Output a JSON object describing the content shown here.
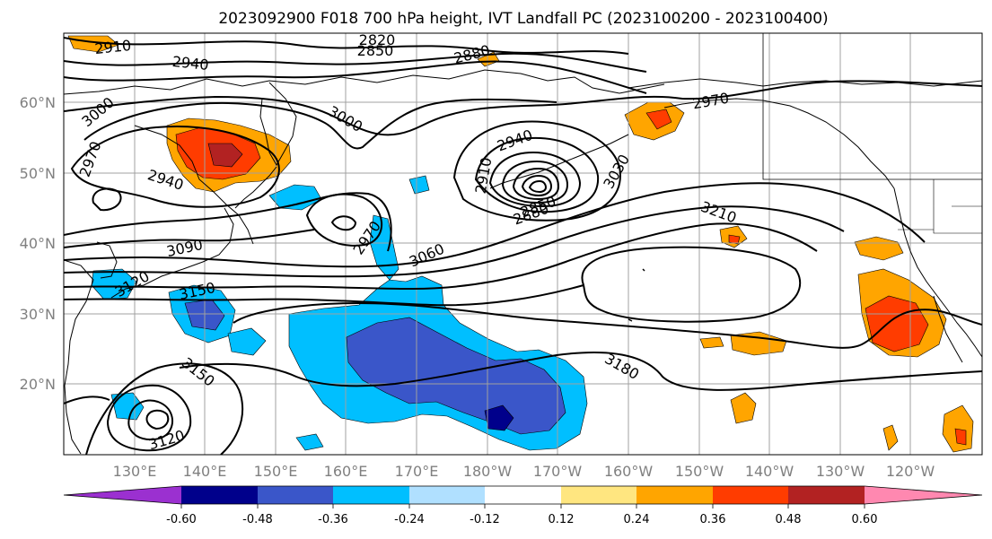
{
  "title": "2023092900 F018 700 hPa height, IVT Landfall PC (2023100200 - 2023100400)",
  "lat_labels": [
    "60°N",
    "50°N",
    "40°N",
    "30°N",
    "20°N"
  ],
  "lon_labels": [
    "130°E",
    "140°E",
    "150°E",
    "160°E",
    "170°E",
    "180°W",
    "170°W",
    "160°W",
    "150°W",
    "140°W",
    "130°W",
    "120°W"
  ],
  "contour_labels": [
    "2820",
    "2850",
    "2880",
    "2910",
    "2940",
    "3000",
    "2970",
    "3000",
    "2940",
    "2940",
    "2970",
    "2910",
    "2850",
    "2880",
    "3030",
    "3210",
    "3090",
    "3060",
    "3120",
    "3150",
    "2970",
    "3150",
    "3180",
    "3120"
  ],
  "colorbar": {
    "colors": [
      "#9b30d0",
      "#00008b",
      "#3a56c9",
      "#00bfff",
      "#b0e0ff",
      "#ffffff",
      "#ffe680",
      "#ffa500",
      "#ff3c00",
      "#b22222",
      "#ff88b0"
    ],
    "labels": [
      "-0.60",
      "-0.48",
      "-0.36",
      "-0.24",
      "-0.12",
      "0.12",
      "0.24",
      "0.36",
      "0.48",
      "0.60"
    ]
  }
}
